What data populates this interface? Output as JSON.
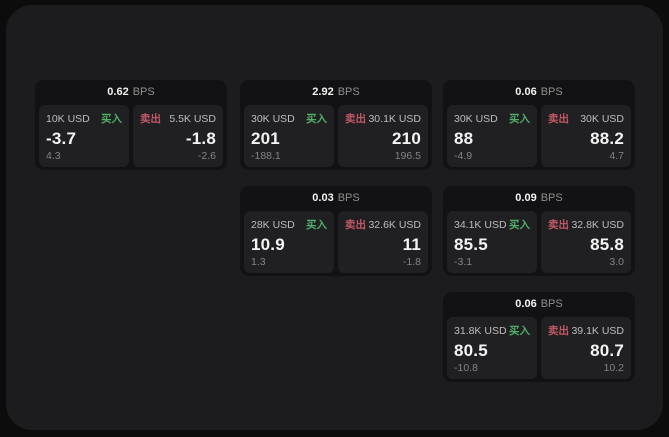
{
  "labels": {
    "bps_unit": "BPS",
    "buy": "买入",
    "sell": "卖出"
  },
  "colors": {
    "buy": "#4fae66",
    "sell": "#c05864",
    "panel": "#1c1c1e",
    "card": "#121214",
    "subcard": "#202023"
  },
  "grid": {
    "col_x": {
      "1": 35,
      "2": 240,
      "3": 443
    },
    "row_y": {
      "1": 80,
      "2": 186,
      "3": 292
    }
  },
  "cards": [
    {
      "bps": "0.62",
      "col": "1",
      "row": "1",
      "buy": {
        "size": "10K USD",
        "price": "-3.7",
        "delta": "4.3"
      },
      "sell": {
        "size": "5.5K USD",
        "price": "-1.8",
        "delta": "-2.6"
      }
    },
    {
      "bps": "2.92",
      "col": "2",
      "row": "1",
      "buy": {
        "size": "30K USD",
        "price": "201",
        "delta": "-188.1"
      },
      "sell": {
        "size": "30.1K USD",
        "price": "210",
        "delta": "196.5"
      }
    },
    {
      "bps": "0.06",
      "col": "3",
      "row": "1",
      "buy": {
        "size": "30K USD",
        "price": "88",
        "delta": "-4.9"
      },
      "sell": {
        "size": "30K USD",
        "price": "88.2",
        "delta": "4.7"
      }
    },
    {
      "bps": "0.03",
      "col": "2",
      "row": "2",
      "buy": {
        "size": "28K USD",
        "price": "10.9",
        "delta": "1.3"
      },
      "sell": {
        "size": "32.6K USD",
        "price": "11",
        "delta": "-1.8"
      }
    },
    {
      "bps": "0.09",
      "col": "3",
      "row": "2",
      "buy": {
        "size": "34.1K USD",
        "price": "85.5",
        "delta": "-3.1"
      },
      "sell": {
        "size": "32.8K USD",
        "price": "85.8",
        "delta": "3.0"
      }
    },
    {
      "bps": "0.06",
      "col": "3",
      "row": "3",
      "buy": {
        "size": "31.8K USD",
        "price": "80.5",
        "delta": "-10.8"
      },
      "sell": {
        "size": "39.1K USD",
        "price": "80.7",
        "delta": "10.2"
      }
    }
  ]
}
